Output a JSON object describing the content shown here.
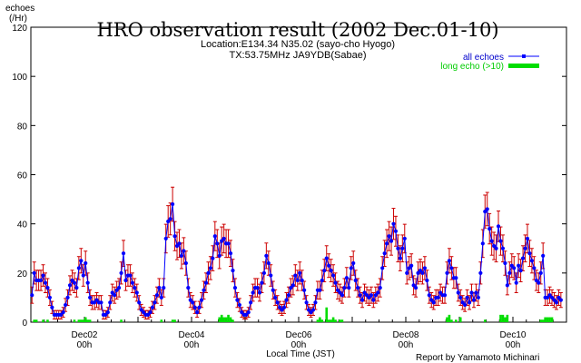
{
  "chart_data": {
    "type": "line",
    "title": "HRO observation result (2002 Dec.01-10)",
    "subtitle_lines": [
      "Location:E134.34 N35.02 (sayo-cho Hyogo)",
      "TX:53.75MHz JA9YDB(Sabae)"
    ],
    "ylabel_lines": [
      "echoes",
      "(/Hr)"
    ],
    "xlabel": "Local Time (JST)",
    "footer": "Report by Yamamoto Michinari",
    "ylim": [
      0,
      120
    ],
    "yticks": [
      0,
      20,
      40,
      60,
      80,
      100,
      120
    ],
    "xlim_hours": [
      0,
      240
    ],
    "xticks": [
      {
        "hour": 24,
        "label": "Dec02",
        "sub": "00h"
      },
      {
        "hour": 72,
        "label": "Dec04",
        "sub": "00h"
      },
      {
        "hour": 120,
        "label": "Dec06",
        "sub": "00h"
      },
      {
        "hour": 168,
        "label": "Dec08",
        "sub": "00h"
      },
      {
        "hour": 216,
        "label": "Dec10",
        "sub": "00h"
      }
    ],
    "grid": false,
    "legend_position": "top-right",
    "series": [
      {
        "name": "all echoes",
        "color": "#0000ff",
        "errorbar_color": "#cc0000",
        "hourly_values": [
          11,
          20,
          17,
          17,
          17,
          19,
          16,
          14,
          10,
          6,
          3,
          3,
          3,
          3,
          4,
          7,
          10,
          15,
          17,
          16,
          14,
          22,
          25,
          19,
          24,
          16,
          10,
          8,
          8,
          9,
          8,
          8,
          3,
          3,
          4,
          8,
          12,
          11,
          13,
          14,
          20,
          28,
          17,
          19,
          19,
          16,
          14,
          12,
          8,
          5,
          4,
          3,
          3,
          4,
          6,
          8,
          11,
          14,
          10,
          14,
          34,
          41,
          42,
          48,
          35,
          31,
          32,
          27,
          29,
          24,
          14,
          9,
          8,
          6,
          4,
          6,
          9,
          13,
          16,
          20,
          22,
          26,
          35,
          32,
          27,
          33,
          34,
          32,
          32,
          28,
          21,
          14,
          9,
          7,
          4,
          3,
          3,
          4,
          8,
          12,
          14,
          14,
          12,
          16,
          20,
          27,
          24,
          19,
          13,
          10,
          8,
          6,
          5,
          6,
          9,
          11,
          14,
          15,
          19,
          17,
          20,
          17,
          13,
          8,
          5,
          4,
          5,
          8,
          13,
          13,
          17,
          21,
          26,
          23,
          21,
          19,
          16,
          13,
          12,
          11,
          14,
          18,
          14,
          22,
          24,
          17,
          14,
          11,
          9,
          12,
          11,
          10,
          11,
          9,
          11,
          12,
          14,
          22,
          28,
          32,
          35,
          33,
          40,
          37,
          30,
          26,
          30,
          34,
          20,
          22,
          23,
          15,
          14,
          20,
          21,
          20,
          22,
          17,
          11,
          9,
          8,
          10,
          10,
          12,
          11,
          11,
          20,
          25,
          22,
          18,
          18,
          12,
          10,
          8,
          7,
          10,
          8,
          12,
          9,
          12,
          10,
          20,
          32,
          45,
          46,
          38,
          33,
          31,
          30,
          39,
          33,
          30,
          24,
          15,
          20,
          23,
          22,
          16,
          23,
          21,
          26,
          30,
          34,
          28,
          25,
          22,
          17,
          16,
          20,
          27,
          10,
          10,
          11,
          10,
          9,
          8,
          10,
          9
        ]
      },
      {
        "name": "long echo (>10)",
        "color": "#00cc00",
        "hourly_values": [
          0,
          1,
          1,
          0,
          0,
          1,
          0,
          1,
          0,
          0,
          0,
          0,
          0,
          0,
          0,
          0,
          0,
          0,
          0,
          1,
          0,
          1,
          1,
          1,
          2,
          1,
          1,
          0,
          0,
          0,
          0,
          0,
          0,
          0,
          0,
          0,
          0,
          0,
          0,
          0,
          1,
          0,
          0,
          0,
          0,
          0,
          0,
          0,
          0,
          0,
          0,
          0,
          0,
          0,
          0,
          0,
          0,
          0,
          1,
          0,
          0,
          0,
          0,
          1,
          1,
          0,
          0,
          0,
          0,
          0,
          0,
          0,
          0,
          0,
          0,
          0,
          0,
          0,
          0,
          0,
          0,
          0,
          0,
          0,
          2,
          3,
          2,
          2,
          3,
          2,
          1,
          0,
          0,
          0,
          0,
          0,
          0,
          0,
          0,
          0,
          0,
          0,
          0,
          0,
          0,
          0,
          0,
          0,
          0,
          0,
          0,
          0,
          0,
          0,
          0,
          0,
          0,
          0,
          0,
          0,
          0,
          0,
          0,
          0,
          0,
          0,
          0,
          0,
          1,
          2,
          1,
          0,
          6,
          1,
          1,
          2,
          1,
          0,
          1,
          1,
          0,
          0,
          0,
          0,
          0,
          0,
          0,
          0,
          0,
          0,
          0,
          0,
          0,
          0,
          0,
          0,
          0,
          0,
          0,
          0,
          0,
          0,
          0,
          0,
          0,
          0,
          0,
          0,
          0,
          0,
          0,
          0,
          0,
          0,
          0,
          0,
          0,
          0,
          0,
          0,
          0,
          0,
          0,
          0,
          0,
          0,
          2,
          3,
          1,
          0,
          1,
          0,
          2,
          0,
          0,
          0,
          0,
          0,
          0,
          0,
          0,
          0,
          0,
          1,
          0,
          0,
          0,
          0,
          0,
          0,
          3,
          3,
          2,
          3,
          0,
          0,
          0,
          0,
          0,
          0,
          0,
          0,
          0,
          0,
          0,
          0,
          0,
          0,
          1,
          1,
          2,
          2,
          2,
          2,
          0,
          0,
          0,
          0,
          0,
          0,
          0,
          0,
          0,
          0,
          0,
          0
        ]
      }
    ]
  }
}
